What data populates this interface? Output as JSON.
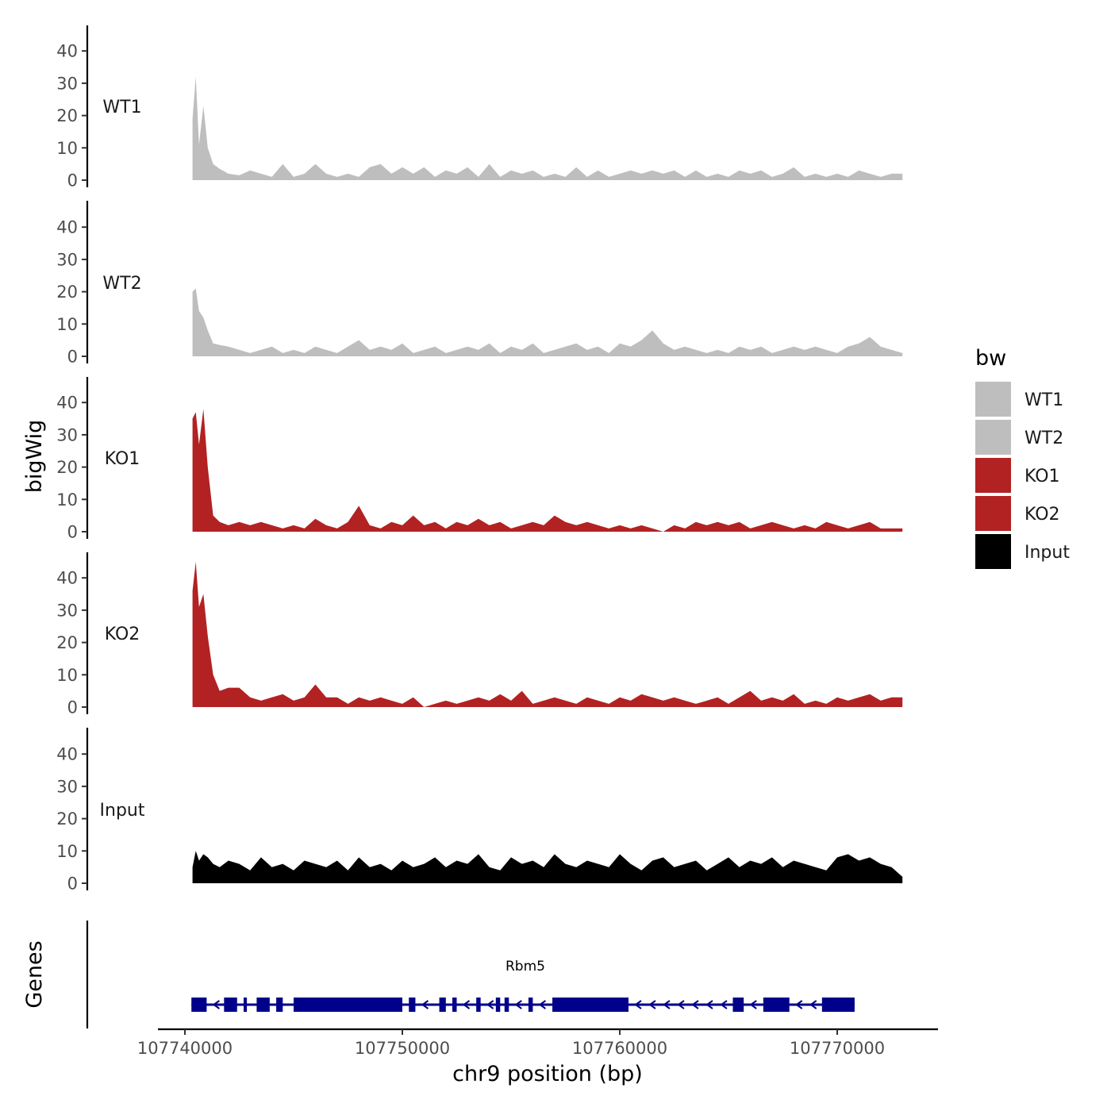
{
  "chart_data": {
    "type": "area",
    "x_axis": {
      "label": "chr9 position (bp)",
      "range": [
        107740000,
        107773000
      ],
      "ticks": [
        107740000,
        107750000,
        107760000,
        107770000
      ],
      "tick_labels": [
        "107740000",
        "107750000",
        "107760000",
        "107770000"
      ]
    },
    "y_axis": {
      "label": "bigWig",
      "range": [
        0,
        45
      ],
      "ticks": [
        0,
        10,
        20,
        30,
        40
      ],
      "tick_labels": [
        "0",
        "10",
        "20",
        "30",
        "40"
      ]
    },
    "legend": {
      "title": "bw",
      "position": "right",
      "entries": [
        {
          "label": "WT1",
          "color": "#bebebe"
        },
        {
          "label": "WT2",
          "color": "#bebebe"
        },
        {
          "label": "KO1",
          "color": "#b22222"
        },
        {
          "label": "KO2",
          "color": "#b22222"
        },
        {
          "label": "Input",
          "color": "#000000"
        }
      ]
    },
    "series": [
      {
        "name": "WT1",
        "color": "#bebebe",
        "x": [
          107740350,
          107740500,
          107740650,
          107740850,
          107741050,
          107741300,
          107741600,
          107742000,
          107742500,
          107743000,
          107743500,
          107744000,
          107744500,
          107745000,
          107745500,
          107746000,
          107746500,
          107747000,
          107747500,
          107748000,
          107748500,
          107749000,
          107749500,
          107750000,
          107750500,
          107751000,
          107751500,
          107752000,
          107752500,
          107753000,
          107753500,
          107754000,
          107754500,
          107755000,
          107755500,
          107756000,
          107756500,
          107757000,
          107757500,
          107758000,
          107758500,
          107759000,
          107759500,
          107760000,
          107760500,
          107761000,
          107761500,
          107762000,
          107762500,
          107763000,
          107763500,
          107764000,
          107764500,
          107765000,
          107765500,
          107766000,
          107766500,
          107767000,
          107767500,
          107768000,
          107768500,
          107769000,
          107769500,
          107770000,
          107770500,
          107771000,
          107771500,
          107772000,
          107772500,
          107773000
        ],
        "values": [
          19,
          32,
          11,
          23,
          10,
          5,
          3.5,
          2,
          1.5,
          3,
          2,
          1,
          5,
          1,
          2,
          5,
          2,
          1,
          2,
          1,
          4,
          5,
          2,
          4,
          2,
          4,
          1,
          3,
          2,
          4,
          1,
          5,
          1,
          3,
          2,
          3,
          1,
          2,
          1,
          4,
          1,
          3,
          1,
          2,
          3,
          2,
          3,
          2,
          3,
          1,
          3,
          1,
          2,
          1,
          3,
          2,
          3,
          1,
          2,
          4,
          1,
          2,
          1,
          2,
          1,
          3,
          2,
          1,
          2,
          2
        ]
      },
      {
        "name": "WT2",
        "color": "#bebebe",
        "x": [
          107740350,
          107740500,
          107740650,
          107740850,
          107741050,
          107741300,
          107741600,
          107742000,
          107742500,
          107743000,
          107743500,
          107744000,
          107744500,
          107745000,
          107745500,
          107746000,
          107746500,
          107747000,
          107747500,
          107748000,
          107748500,
          107749000,
          107749500,
          107750000,
          107750500,
          107751000,
          107751500,
          107752000,
          107752500,
          107753000,
          107753500,
          107754000,
          107754500,
          107755000,
          107755500,
          107756000,
          107756500,
          107757000,
          107757500,
          107758000,
          107758500,
          107759000,
          107759500,
          107760000,
          107760500,
          107761000,
          107761500,
          107762000,
          107762500,
          107763000,
          107763500,
          107764000,
          107764500,
          107765000,
          107765500,
          107766000,
          107766500,
          107767000,
          107767500,
          107768000,
          107768500,
          107769000,
          107769500,
          107770000,
          107770500,
          107771000,
          107771500,
          107772000,
          107772500,
          107773000
        ],
        "values": [
          20,
          21,
          14,
          12,
          8,
          4,
          3.5,
          3,
          2,
          1,
          2,
          3,
          1,
          2,
          1,
          3,
          2,
          1,
          3,
          5,
          2,
          3,
          2,
          4,
          1,
          2,
          3,
          1,
          2,
          3,
          2,
          4,
          1,
          3,
          2,
          4,
          1,
          2,
          3,
          4,
          2,
          3,
          1,
          4,
          3,
          5,
          8,
          4,
          2,
          3,
          2,
          1,
          2,
          1,
          3,
          2,
          3,
          1,
          2,
          3,
          2,
          3,
          2,
          1,
          3,
          4,
          6,
          3,
          2,
          1
        ]
      },
      {
        "name": "KO1",
        "color": "#b22222",
        "x": [
          107740350,
          107740500,
          107740650,
          107740850,
          107741050,
          107741300,
          107741600,
          107742000,
          107742500,
          107743000,
          107743500,
          107744000,
          107744500,
          107745000,
          107745500,
          107746000,
          107746500,
          107747000,
          107747500,
          107748000,
          107748500,
          107749000,
          107749500,
          107750000,
          107750500,
          107751000,
          107751500,
          107752000,
          107752500,
          107753000,
          107753500,
          107754000,
          107754500,
          107755000,
          107755500,
          107756000,
          107756500,
          107757000,
          107757500,
          107758000,
          107758500,
          107759000,
          107759500,
          107760000,
          107760500,
          107761000,
          107761500,
          107762000,
          107762500,
          107763000,
          107763500,
          107764000,
          107764500,
          107765000,
          107765500,
          107766000,
          107766500,
          107767000,
          107767500,
          107768000,
          107768500,
          107769000,
          107769500,
          107770000,
          107770500,
          107771000,
          107771500,
          107772000,
          107772500,
          107773000
        ],
        "values": [
          35,
          37,
          27,
          38,
          20,
          5,
          3,
          2,
          3,
          2,
          3,
          2,
          1,
          2,
          1,
          4,
          2,
          1,
          3,
          8,
          2,
          1,
          3,
          2,
          5,
          2,
          3,
          1,
          3,
          2,
          4,
          2,
          3,
          1,
          2,
          3,
          2,
          5,
          3,
          2,
          3,
          2,
          1,
          2,
          1,
          2,
          1,
          0,
          2,
          1,
          3,
          2,
          3,
          2,
          3,
          1,
          2,
          3,
          2,
          1,
          2,
          1,
          3,
          2,
          1,
          2,
          3,
          1,
          1,
          1
        ]
      },
      {
        "name": "KO2",
        "color": "#b22222",
        "x": [
          107740350,
          107740500,
          107740650,
          107740850,
          107741050,
          107741300,
          107741600,
          107742000,
          107742500,
          107743000,
          107743500,
          107744000,
          107744500,
          107745000,
          107745500,
          107746000,
          107746500,
          107747000,
          107747500,
          107748000,
          107748500,
          107749000,
          107749500,
          107750000,
          107750500,
          107751000,
          107751500,
          107752000,
          107752500,
          107753000,
          107753500,
          107754000,
          107754500,
          107755000,
          107755500,
          107756000,
          107756500,
          107757000,
          107757500,
          107758000,
          107758500,
          107759000,
          107759500,
          107760000,
          107760500,
          107761000,
          107761500,
          107762000,
          107762500,
          107763000,
          107763500,
          107764000,
          107764500,
          107765000,
          107765500,
          107766000,
          107766500,
          107767000,
          107767500,
          107768000,
          107768500,
          107769000,
          107769500,
          107770000,
          107770500,
          107771000,
          107771500,
          107772000,
          107772500,
          107773000
        ],
        "values": [
          36,
          45,
          31,
          35,
          22,
          10,
          5,
          6,
          6,
          3,
          2,
          3,
          4,
          2,
          3,
          7,
          3,
          3,
          1,
          3,
          2,
          3,
          2,
          1,
          3,
          0,
          1,
          2,
          1,
          2,
          3,
          2,
          4,
          2,
          5,
          1,
          2,
          3,
          2,
          1,
          3,
          2,
          1,
          3,
          2,
          4,
          3,
          2,
          3,
          2,
          1,
          2,
          3,
          1,
          3,
          5,
          2,
          3,
          2,
          4,
          1,
          2,
          1,
          3,
          2,
          3,
          4,
          2,
          3,
          3
        ]
      },
      {
        "name": "Input",
        "color": "#000000",
        "x": [
          107740350,
          107740500,
          107740650,
          107740850,
          107741050,
          107741300,
          107741600,
          107742000,
          107742500,
          107743000,
          107743500,
          107744000,
          107744500,
          107745000,
          107745500,
          107746000,
          107746500,
          107747000,
          107747500,
          107748000,
          107748500,
          107749000,
          107749500,
          107750000,
          107750500,
          107751000,
          107751500,
          107752000,
          107752500,
          107753000,
          107753500,
          107754000,
          107754500,
          107755000,
          107755500,
          107756000,
          107756500,
          107757000,
          107757500,
          107758000,
          107758500,
          107759000,
          107759500,
          107760000,
          107760500,
          107761000,
          107761500,
          107762000,
          107762500,
          107763000,
          107763500,
          107764000,
          107764500,
          107765000,
          107765500,
          107766000,
          107766500,
          107767000,
          107767500,
          107768000,
          107768500,
          107769000,
          107769500,
          107770000,
          107770500,
          107771000,
          107771500,
          107772000,
          107772500,
          107773000
        ],
        "values": [
          5,
          10,
          7,
          9,
          8,
          6,
          5,
          7,
          6,
          4,
          8,
          5,
          6,
          4,
          7,
          6,
          5,
          7,
          4,
          8,
          5,
          6,
          4,
          7,
          5,
          6,
          8,
          5,
          7,
          6,
          9,
          5,
          4,
          8,
          6,
          7,
          5,
          9,
          6,
          5,
          7,
          6,
          5,
          9,
          6,
          4,
          7,
          8,
          5,
          6,
          7,
          4,
          6,
          8,
          5,
          7,
          6,
          8,
          5,
          7,
          6,
          5,
          4,
          8,
          9,
          7,
          8,
          6,
          5,
          2
        ]
      }
    ],
    "annotations": [
      {
        "track": "Genes",
        "label": "Rbm5",
        "strand": "-",
        "range": [
          107740300,
          107770800
        ]
      }
    ],
    "grid": false
  },
  "genes": {
    "label": "Genes",
    "name": "Rbm5",
    "color": "#00008b",
    "exons": [
      [
        107740300,
        107741000
      ],
      [
        107741800,
        107742400
      ],
      [
        107742700,
        107742850
      ],
      [
        107743300,
        107743900
      ],
      [
        107744200,
        107744500
      ],
      [
        107745000,
        107750000
      ],
      [
        107750300,
        107750600
      ],
      [
        107751700,
        107752000
      ],
      [
        107752300,
        107752500
      ],
      [
        107753400,
        107753600
      ],
      [
        107754300,
        107754500
      ],
      [
        107754700,
        107754900
      ],
      [
        107755800,
        107756000
      ],
      [
        107756900,
        107760400
      ],
      [
        107765200,
        107765700
      ],
      [
        107766600,
        107767800
      ],
      [
        107769300,
        107770800
      ]
    ]
  }
}
